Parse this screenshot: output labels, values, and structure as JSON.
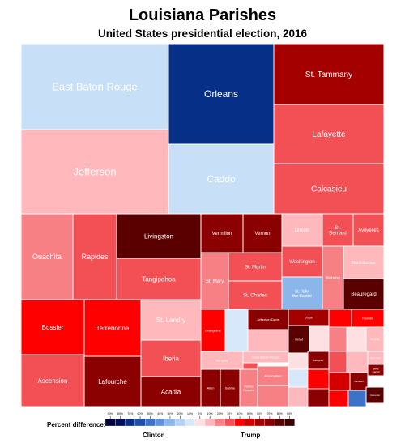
{
  "title": "Louisiana Parishes",
  "subtitle": "United States presidential election, 2016",
  "chart_data": {
    "type": "treemap",
    "title": "Louisiana Parishes",
    "subtitle": "United States presidential election, 2016",
    "parishes": [
      {
        "name": "East Baton Rouge",
        "color": "#c8dff8"
      },
      {
        "name": "Jefferson",
        "color": "#ffb9bd"
      },
      {
        "name": "Orleans",
        "color": "#062f87"
      },
      {
        "name": "Caddo",
        "color": "#c8dff8"
      },
      {
        "name": "St. Tammany",
        "color": "#a50000"
      },
      {
        "name": "Lafayette",
        "color": "#f25055"
      },
      {
        "name": "Calcasieu",
        "color": "#f25055"
      },
      {
        "name": "Ouachita",
        "color": "#f78085"
      },
      {
        "name": "Rapides",
        "color": "#f25055"
      },
      {
        "name": "Livingston",
        "color": "#5a0000"
      },
      {
        "name": "Tangipahoa",
        "color": "#f25055"
      },
      {
        "name": "Vermilion",
        "color": "#8b0000"
      },
      {
        "name": "Vernon",
        "color": "#8b0000"
      },
      {
        "name": "Lincoln",
        "color": "#ffb9bd"
      },
      {
        "name": "St. Bernard",
        "color": "#f25055"
      },
      {
        "name": "Avoyelles",
        "color": "#f25055"
      },
      {
        "name": "St. Mary",
        "color": "#f78085"
      },
      {
        "name": "St. Martin",
        "color": "#f25055"
      },
      {
        "name": "St. Charles",
        "color": "#f25055"
      },
      {
        "name": "Washington",
        "color": "#f25055"
      },
      {
        "name": "Natchitoches",
        "color": "#ffb9bd"
      },
      {
        "name": "Webster",
        "color": "#f78085"
      },
      {
        "name": "St. John the Baptist",
        "color": "#8ab6ea"
      },
      {
        "name": "Beauregard",
        "color": "#5a0000"
      },
      {
        "name": "Bossier",
        "color": "#ff0000"
      },
      {
        "name": "Terrebonne",
        "color": "#ff0000"
      },
      {
        "name": "St. Landry",
        "color": "#ffb9bd"
      },
      {
        "name": "Iberia",
        "color": "#f25055"
      },
      {
        "name": "Ascension",
        "color": "#f25055"
      },
      {
        "name": "Lafourche",
        "color": "#8b0000"
      },
      {
        "name": "Acadia",
        "color": "#8b0000"
      },
      {
        "name": "Evangeline",
        "color": "#ff0000"
      },
      {
        "name": "Jefferson Davis",
        "color": "#8b0000"
      },
      {
        "name": "Union",
        "color": "#a50000"
      },
      {
        "name": "Franklin",
        "color": "#ff0000"
      },
      {
        "name": "Grant",
        "color": "#5a0000"
      },
      {
        "name": "De Soto",
        "color": "#ffb9bd"
      },
      {
        "name": "West Baton Rouge",
        "color": "#ffb9bd"
      },
      {
        "name": "Assumption",
        "color": "#f78085"
      },
      {
        "name": "Allen",
        "color": "#8b0000"
      },
      {
        "name": "Sabine",
        "color": "#8b0000"
      },
      {
        "name": "Pointe Coupee",
        "color": "#f78085"
      },
      {
        "name": "Lafayette",
        "color": "#8b0000"
      },
      {
        "name": "Caldwell",
        "color": "#8b0000"
      },
      {
        "name": "Cameron",
        "color": "#5a0000"
      },
      {
        "name": "Red River",
        "color": "#ffb9bd"
      },
      {
        "name": "Bienville",
        "color": "#ffb9bd"
      },
      {
        "name": "West Carroll",
        "color": "#8b0000"
      }
    ],
    "legend": {
      "label": "Percent difference:",
      "left_label": "Clinton",
      "right_label": "Trump",
      "ticks": [
        "90%",
        "80%",
        "70%",
        "60%",
        "50%",
        "40%",
        "30%",
        "20%",
        "10%",
        "0%",
        "10%",
        "20%",
        "30%",
        "40%",
        "50%",
        "60%",
        "70%",
        "80%",
        "90%"
      ],
      "colors": [
        "#00003c",
        "#000f5a",
        "#062f87",
        "#1c4fa8",
        "#3d73c7",
        "#5e93dc",
        "#8ab6ea",
        "#b3d2f5",
        "#d8e8fb",
        "#ffe0e2",
        "#ffb9bd",
        "#f78085",
        "#f25055",
        "#ff0000",
        "#d40000",
        "#a50000",
        "#8b0000",
        "#5a0000",
        "#3a0000"
      ]
    }
  }
}
